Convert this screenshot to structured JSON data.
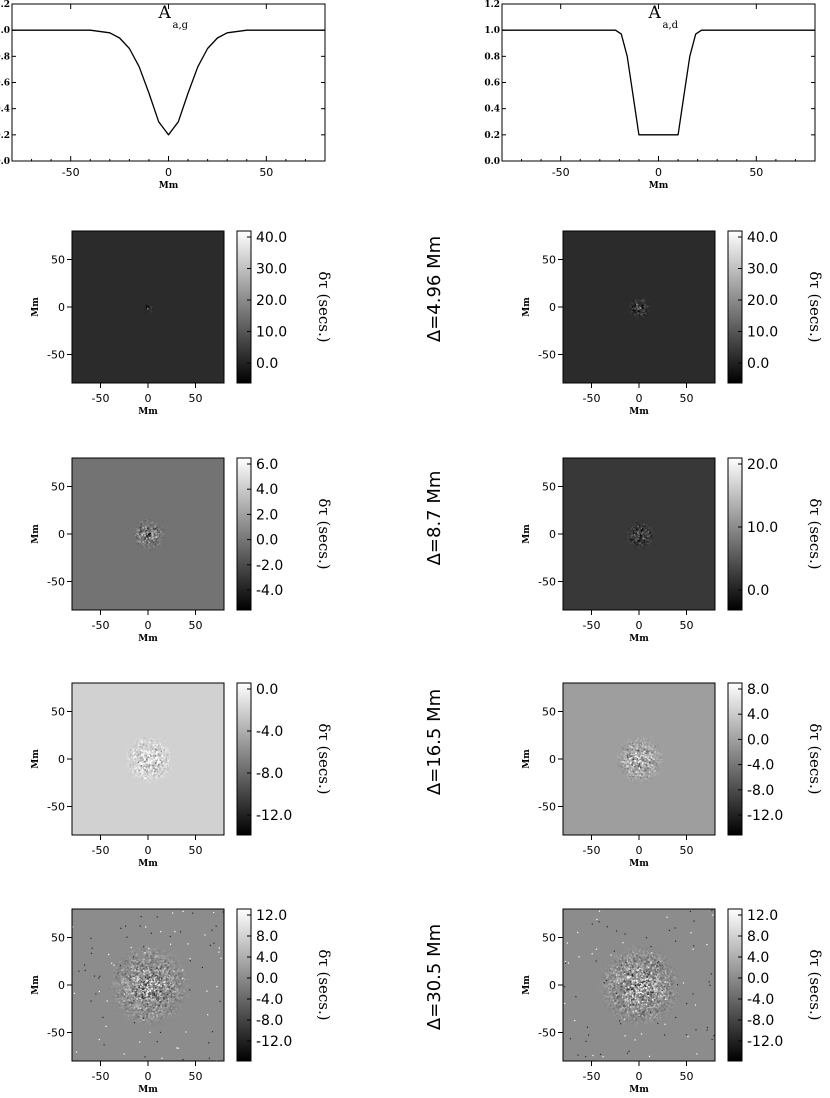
{
  "chart_data": [
    {
      "type": "line",
      "panel": "profile-gaussian",
      "title_main": "A",
      "title_sub": "a,g",
      "xlabel": "Mm",
      "xlim": [
        -80,
        80
      ],
      "ylim": [
        0.0,
        1.2
      ],
      "xticks": [
        "-50",
        "0",
        "50"
      ],
      "yticks": [
        "0.0",
        "0.2",
        "0.4",
        "0.6",
        "0.8",
        "1.0",
        "1.2"
      ],
      "x": [
        -80,
        -40,
        -30,
        -25,
        -20,
        -15,
        -10,
        -5,
        0,
        5,
        10,
        15,
        20,
        25,
        30,
        40,
        80
      ],
      "y": [
        1.0,
        1.0,
        0.98,
        0.94,
        0.86,
        0.72,
        0.52,
        0.3,
        0.2,
        0.3,
        0.52,
        0.72,
        0.86,
        0.94,
        0.98,
        1.0,
        1.0
      ]
    },
    {
      "type": "line",
      "panel": "profile-flat",
      "title_main": "A",
      "title_sub": "a,d",
      "xlabel": "Mm",
      "xlim": [
        -80,
        80
      ],
      "ylim": [
        0.0,
        1.2
      ],
      "xticks": [
        "-50",
        "0",
        "50"
      ],
      "yticks": [
        "0.0",
        "0.2",
        "0.4",
        "0.6",
        "0.8",
        "1.0",
        "1.2"
      ],
      "x": [
        -80,
        -22,
        -19,
        -16,
        -13,
        -10,
        -8,
        8,
        10,
        13,
        16,
        19,
        22,
        80
      ],
      "y": [
        1.0,
        1.0,
        0.97,
        0.8,
        0.5,
        0.2,
        0.2,
        0.2,
        0.2,
        0.5,
        0.8,
        0.97,
        1.0,
        1.0
      ]
    },
    {
      "type": "heatmap",
      "row": 1,
      "col": "left",
      "xlabel": "Mm",
      "ylabel": "Mm",
      "xlim": [
        -80,
        80
      ],
      "ylim": [
        -80,
        80
      ],
      "xticks": [
        "-50",
        "0",
        "50"
      ],
      "yticks": [
        "50",
        "0",
        "-50"
      ],
      "background_gray": 0.17,
      "blob": {
        "radius": 6,
        "amplitude": 0.35,
        "noise": 0.3
      },
      "colorbar": {
        "ticks": [
          "40.0",
          "30.0",
          "20.0",
          "10.0",
          "0.0"
        ],
        "label": "δτ (secs.)"
      }
    },
    {
      "type": "heatmap",
      "row": 1,
      "col": "right",
      "xlabel": "Mm",
      "ylabel": "Mm",
      "xlim": [
        -80,
        80
      ],
      "ylim": [
        -80,
        80
      ],
      "xticks": [
        "-50",
        "0",
        "50"
      ],
      "yticks": [
        "50",
        "0",
        "-50"
      ],
      "background_gray": 0.17,
      "blob": {
        "radius": 12,
        "amplitude": 0.45,
        "noise": 0.3
      },
      "colorbar": {
        "ticks": [
          "40.0",
          "30.0",
          "20.0",
          "10.0",
          "0.0"
        ],
        "label": "δτ (secs.)"
      }
    },
    {
      "type": "heatmap",
      "row": 2,
      "col": "left",
      "xlabel": "Mm",
      "ylabel": "Mm",
      "xlim": [
        -80,
        80
      ],
      "ylim": [
        -80,
        80
      ],
      "xticks": [
        "-50",
        "0",
        "50"
      ],
      "yticks": [
        "50",
        "0",
        "-50"
      ],
      "background_gray": 0.45,
      "blob": {
        "radius": 18,
        "amplitude": 0.35,
        "noise": 0.45
      },
      "colorbar": {
        "ticks": [
          "6.0",
          "4.0",
          "2.0",
          "0.0",
          "-2.0",
          "-4.0"
        ],
        "label": "δτ (secs.)"
      }
    },
    {
      "type": "heatmap",
      "row": 2,
      "col": "right",
      "xlabel": "Mm",
      "ylabel": "Mm",
      "xlim": [
        -80,
        80
      ],
      "ylim": [
        -80,
        80
      ],
      "xticks": [
        "-50",
        "0",
        "50"
      ],
      "yticks": [
        "50",
        "0",
        "-50"
      ],
      "background_gray": 0.22,
      "blob": {
        "radius": 16,
        "amplitude": 0.35,
        "noise": 0.35
      },
      "colorbar": {
        "ticks": [
          "20.0",
          "10.0",
          "0.0"
        ],
        "label": "δτ (secs.)"
      }
    },
    {
      "type": "heatmap",
      "row": 3,
      "col": "left",
      "xlabel": "Mm",
      "ylabel": "Mm",
      "xlim": [
        -80,
        80
      ],
      "ylim": [
        -80,
        80
      ],
      "xticks": [
        "-50",
        "0",
        "50"
      ],
      "yticks": [
        "50",
        "0",
        "-50"
      ],
      "background_gray": 0.82,
      "blob": {
        "radius": 26,
        "amplitude": 0.4,
        "noise": 0.45
      },
      "colorbar": {
        "ticks": [
          "0.0",
          "-4.0",
          "-8.0",
          "-12.0"
        ],
        "label": "δτ (secs.)"
      }
    },
    {
      "type": "heatmap",
      "row": 3,
      "col": "right",
      "xlabel": "Mm",
      "ylabel": "Mm",
      "xlim": [
        -80,
        80
      ],
      "ylim": [
        -80,
        80
      ],
      "xticks": [
        "-50",
        "0",
        "50"
      ],
      "yticks": [
        "50",
        "0",
        "-50"
      ],
      "background_gray": 0.62,
      "blob": {
        "radius": 26,
        "amplitude": 0.4,
        "noise": 0.45
      },
      "colorbar": {
        "ticks": [
          "8.0",
          "4.0",
          "0.0",
          "-4.0",
          "-8.0",
          "-12.0"
        ],
        "label": "δτ (secs.)"
      }
    },
    {
      "type": "heatmap",
      "row": 4,
      "col": "left",
      "xlabel": "Mm",
      "ylabel": "Mm",
      "xlim": [
        -80,
        80
      ],
      "ylim": [
        -80,
        80
      ],
      "xticks": [
        "-50",
        "0",
        "50"
      ],
      "yticks": [
        "50",
        "0",
        "-50"
      ],
      "background_gray": 0.55,
      "blob": {
        "radius": 44,
        "amplitude": 0.25,
        "noise": 0.5
      },
      "colorbar": {
        "ticks": [
          "12.0",
          "8.0",
          "4.0",
          "0.0",
          "-4.0",
          "-8.0",
          "-12.0"
        ],
        "label": "δτ (secs.)"
      }
    },
    {
      "type": "heatmap",
      "row": 4,
      "col": "right",
      "xlabel": "Mm",
      "ylabel": "Mm",
      "xlim": [
        -80,
        80
      ],
      "ylim": [
        -80,
        80
      ],
      "xticks": [
        "-50",
        "0",
        "50"
      ],
      "yticks": [
        "50",
        "0",
        "-50"
      ],
      "background_gray": 0.55,
      "blob": {
        "radius": 44,
        "amplitude": 0.35,
        "noise": 0.55
      },
      "colorbar": {
        "ticks": [
          "12.0",
          "8.0",
          "4.0",
          "0.0",
          "-4.0",
          "-8.0",
          "-12.0"
        ],
        "label": "δτ (secs.)"
      }
    }
  ],
  "delta_labels": [
    "Δ=4.96 Mm",
    "Δ=8.7 Mm",
    "Δ=16.5 Mm",
    "Δ=30.5 Mm"
  ]
}
